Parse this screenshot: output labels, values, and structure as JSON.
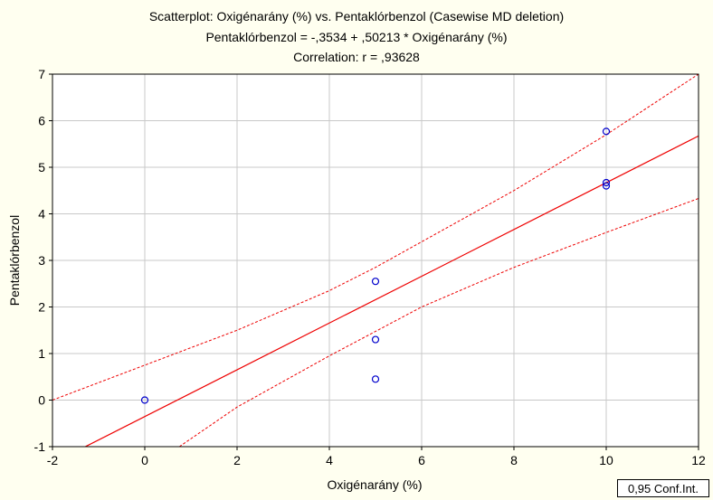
{
  "chart_data": {
    "type": "scatter",
    "title": "Scatterplot: Oxigénarány (%) vs. Pentaklórbenzol (Casewise MD deletion)",
    "subtitle": "Pentaklórbenzol = -,3534 + ,50213 * Oxigénarány (%)",
    "subtitle2": "Correlation: r = ,93628",
    "xlabel": "Oxigénarány (%)",
    "ylabel": "Pentaklórbenzol",
    "xlim": [
      -2,
      12
    ],
    "ylim": [
      -1,
      7
    ],
    "x_ticks": [
      -2,
      0,
      2,
      4,
      6,
      8,
      10,
      12
    ],
    "y_ticks": [
      -1,
      0,
      1,
      2,
      3,
      4,
      5,
      6,
      7
    ],
    "grid": true,
    "points": [
      {
        "x": 0,
        "y": 0.0
      },
      {
        "x": 5,
        "y": 2.55
      },
      {
        "x": 5,
        "y": 1.3
      },
      {
        "x": 5,
        "y": 0.45
      },
      {
        "x": 10,
        "y": 5.77
      },
      {
        "x": 10,
        "y": 4.67
      },
      {
        "x": 10,
        "y": 4.6
      }
    ],
    "regression": {
      "intercept": -0.3534,
      "slope": 0.50213
    },
    "confidence_upper": [
      [
        -2,
        0.0
      ],
      [
        0,
        0.75
      ],
      [
        2,
        1.5
      ],
      [
        4,
        2.35
      ],
      [
        5,
        2.85
      ],
      [
        6,
        3.4
      ],
      [
        8,
        4.5
      ],
      [
        10,
        5.7
      ],
      [
        12,
        7.0
      ]
    ],
    "confidence_lower": [
      [
        0.75,
        -1.0
      ],
      [
        2,
        -0.15
      ],
      [
        4,
        0.95
      ],
      [
        6,
        2.0
      ],
      [
        8,
        2.85
      ],
      [
        10,
        3.6
      ],
      [
        12,
        4.33
      ]
    ],
    "legend": "0,95 Conf.Int.",
    "colors": {
      "points": "#0000cc",
      "regression": "#ee0000",
      "background": "#fffff0",
      "grid": "#c8c8c8"
    }
  }
}
